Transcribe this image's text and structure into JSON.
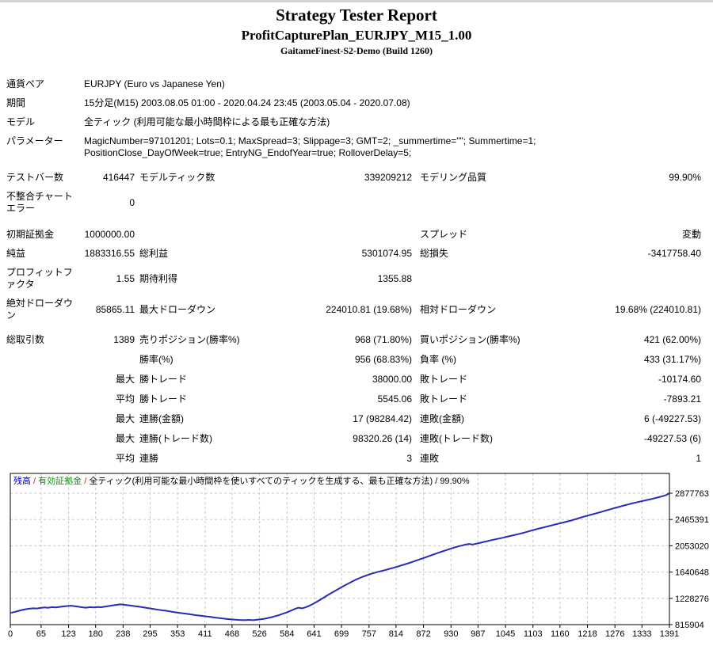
{
  "header": {
    "title": "Strategy Tester Report",
    "symbol_line": "ProfitCapturePlan_EURJPY_M15_1.00",
    "server_line": "GaitameFinest-S2-Demo (Build 1260)"
  },
  "table": {
    "sections": [
      {
        "name": "settings",
        "rows": [
          {
            "type": "full",
            "label": "通貨ペア",
            "value": "EURJPY (Euro vs Japanese Yen)"
          },
          {
            "type": "full",
            "label": "期間",
            "value": "15分足(M15) 2003.08.05 01:00 - 2020.04.24 23:45 (2003.05.04 - 2020.07.08)"
          },
          {
            "type": "full",
            "label": "モデル",
            "value": "全ティック (利用可能な最小時間枠による最も正確な方法)"
          },
          {
            "type": "full",
            "label": "パラメーター",
            "value": "MagicNumber=97101201; Lots=0.1; MaxSpread=3; Slippage=3; GMT=2; _summertime=\"\"; Summertime=1; PositionClose_DayOfWeek=true; EntryNG_EndofYear=true; RolloverDelay=5;"
          }
        ]
      },
      {
        "name": "modeling",
        "rows": [
          {
            "type": "cols",
            "cells": [
              "テストバー数",
              "416447",
              "モデルティック数",
              "339209212",
              "モデリング品質",
              "99.90%"
            ]
          },
          {
            "type": "cols",
            "cells": [
              "不整合チャートエラー",
              "0",
              "",
              "",
              "",
              ""
            ]
          }
        ]
      },
      {
        "name": "results",
        "rows": [
          {
            "type": "cols",
            "cells": [
              "初期証拠金",
              "1000000.00",
              "",
              "",
              "スプレッド",
              "変動"
            ]
          },
          {
            "type": "cols",
            "cells": [
              "純益",
              "1883316.55",
              "総利益",
              "5301074.95",
              "総損失",
              "-3417758.40"
            ]
          },
          {
            "type": "cols",
            "cells": [
              "プロフィットファクタ",
              "1.55",
              "期待利得",
              "1355.88",
              "",
              ""
            ]
          },
          {
            "type": "cols",
            "cells": [
              "絶対ドローダウン",
              "85865.11",
              "最大ドローダウン",
              "224010.81 (19.68%)",
              "相対ドローダウン",
              "19.68% (224010.81)"
            ]
          }
        ]
      },
      {
        "name": "trades",
        "rows": [
          {
            "type": "cols",
            "cells": [
              "総取引数",
              "1389",
              "売りポジション(勝率%)",
              "968 (71.80%)",
              "買いポジション(勝率%)",
              "421 (62.00%)"
            ]
          },
          {
            "type": "cols",
            "cells": [
              "",
              "",
              "勝率(%)",
              "956 (68.83%)",
              "負率 (%)",
              "433 (31.17%)"
            ]
          },
          {
            "type": "cols",
            "cells": [
              "",
              "最大",
              "勝トレード",
              "38000.00",
              "敗トレード",
              "-10174.60"
            ]
          },
          {
            "type": "cols",
            "cells": [
              "",
              "平均",
              "勝トレード",
              "5545.06",
              "敗トレード",
              "-7893.21"
            ]
          },
          {
            "type": "cols",
            "cells": [
              "",
              "最大",
              "連勝(金額)",
              "17 (98284.42)",
              "連敗(金額)",
              "6 (-49227.53)"
            ]
          },
          {
            "type": "cols",
            "cells": [
              "",
              "最大",
              "連勝(トレード数)",
              "98320.26 (14)",
              "連敗(トレード数)",
              "-49227.53 (6)"
            ]
          },
          {
            "type": "cols",
            "cells": [
              "",
              "平均",
              "連勝",
              "3",
              "連敗",
              "1"
            ]
          }
        ]
      }
    ]
  },
  "chart_data": {
    "type": "line",
    "legend": {
      "balance_label": "残高",
      "equity_label": "有効証拠金",
      "model_label": "全ティック(利用可能な最小時間枠を使いすべてのティックを生成する、最も正確な方法)",
      "quality": "99.90%",
      "separator": " / "
    },
    "xlabel": "",
    "ylabel": "",
    "x_axis": {
      "range": [
        0,
        1391
      ],
      "ticks": [
        0,
        65,
        123,
        180,
        238,
        295,
        353,
        411,
        468,
        526,
        584,
        641,
        699,
        757,
        814,
        872,
        930,
        987,
        1045,
        1103,
        1160,
        1218,
        1276,
        1333,
        1391
      ]
    },
    "y_axis": {
      "ticks": [
        815904,
        1228276,
        1640648,
        2053020,
        2465391,
        2877763
      ]
    },
    "grid": "dashed",
    "series": [
      {
        "name": "残高",
        "color": "#2A2AB8",
        "points": [
          [
            0,
            1000000
          ],
          [
            8,
            1012000
          ],
          [
            16,
            1028000
          ],
          [
            24,
            1044000
          ],
          [
            32,
            1057000
          ],
          [
            40,
            1066000
          ],
          [
            48,
            1072000
          ],
          [
            56,
            1069000
          ],
          [
            64,
            1078000
          ],
          [
            72,
            1085000
          ],
          [
            80,
            1081000
          ],
          [
            88,
            1090000
          ],
          [
            96,
            1086000
          ],
          [
            104,
            1094000
          ],
          [
            112,
            1102000
          ],
          [
            120,
            1108000
          ],
          [
            128,
            1113000
          ],
          [
            136,
            1104000
          ],
          [
            144,
            1096000
          ],
          [
            152,
            1088000
          ],
          [
            160,
            1082000
          ],
          [
            168,
            1091000
          ],
          [
            176,
            1086000
          ],
          [
            184,
            1092000
          ],
          [
            192,
            1089000
          ],
          [
            200,
            1098000
          ],
          [
            208,
            1108000
          ],
          [
            216,
            1117000
          ],
          [
            224,
            1126000
          ],
          [
            232,
            1134000
          ],
          [
            240,
            1128000
          ],
          [
            248,
            1120000
          ],
          [
            256,
            1113000
          ],
          [
            264,
            1105000
          ],
          [
            272,
            1097000
          ],
          [
            280,
            1088000
          ],
          [
            288,
            1078000
          ],
          [
            296,
            1069000
          ],
          [
            304,
            1059000
          ],
          [
            312,
            1050000
          ],
          [
            320,
            1041000
          ],
          [
            328,
            1034000
          ],
          [
            336,
            1024000
          ],
          [
            344,
            1014000
          ],
          [
            352,
            1005000
          ],
          [
            360,
            997000
          ],
          [
            368,
            990000
          ],
          [
            376,
            982000
          ],
          [
            384,
            973000
          ],
          [
            392,
            964000
          ],
          [
            400,
            957000
          ],
          [
            408,
            950000
          ],
          [
            416,
            943000
          ],
          [
            424,
            935000
          ],
          [
            432,
            927000
          ],
          [
            440,
            920000
          ],
          [
            448,
            913000
          ],
          [
            456,
            906000
          ],
          [
            464,
            900000
          ],
          [
            472,
            895000
          ],
          [
            480,
            891000
          ],
          [
            488,
            888000
          ],
          [
            496,
            886000
          ],
          [
            504,
            890000
          ],
          [
            512,
            886000
          ],
          [
            520,
            892000
          ],
          [
            528,
            899000
          ],
          [
            536,
            908000
          ],
          [
            544,
            920000
          ],
          [
            552,
            934000
          ],
          [
            560,
            950000
          ],
          [
            568,
            968000
          ],
          [
            576,
            988000
          ],
          [
            584,
            1010000
          ],
          [
            592,
            1034000
          ],
          [
            600,
            1060000
          ],
          [
            608,
            1082000
          ],
          [
            616,
            1072000
          ],
          [
            624,
            1090000
          ],
          [
            632,
            1115000
          ],
          [
            640,
            1145000
          ],
          [
            648,
            1180000
          ],
          [
            656,
            1215000
          ],
          [
            664,
            1252000
          ],
          [
            672,
            1288000
          ],
          [
            680,
            1322000
          ],
          [
            688,
            1356000
          ],
          [
            696,
            1390000
          ],
          [
            704,
            1424000
          ],
          [
            712,
            1456000
          ],
          [
            720,
            1487000
          ],
          [
            728,
            1516000
          ],
          [
            736,
            1543000
          ],
          [
            744,
            1567000
          ],
          [
            752,
            1589000
          ],
          [
            760,
            1609000
          ],
          [
            768,
            1627000
          ],
          [
            776,
            1644000
          ],
          [
            784,
            1658000
          ],
          [
            792,
            1673000
          ],
          [
            800,
            1690000
          ],
          [
            808,
            1707000
          ],
          [
            816,
            1724000
          ],
          [
            824,
            1742000
          ],
          [
            832,
            1760000
          ],
          [
            840,
            1779000
          ],
          [
            848,
            1799000
          ],
          [
            856,
            1819000
          ],
          [
            864,
            1840000
          ],
          [
            872,
            1861000
          ],
          [
            880,
            1882000
          ],
          [
            888,
            1903000
          ],
          [
            896,
            1924000
          ],
          [
            904,
            1945000
          ],
          [
            912,
            1965000
          ],
          [
            920,
            1985000
          ],
          [
            928,
            2005000
          ],
          [
            936,
            2023000
          ],
          [
            944,
            2040000
          ],
          [
            952,
            2056000
          ],
          [
            960,
            2070000
          ],
          [
            968,
            2081000
          ],
          [
            976,
            2073000
          ],
          [
            984,
            2086000
          ],
          [
            992,
            2100000
          ],
          [
            1000,
            2114000
          ],
          [
            1008,
            2128000
          ],
          [
            1016,
            2142000
          ],
          [
            1024,
            2155000
          ],
          [
            1032,
            2167000
          ],
          [
            1040,
            2180000
          ],
          [
            1048,
            2194000
          ],
          [
            1056,
            2208000
          ],
          [
            1064,
            2222000
          ],
          [
            1072,
            2236000
          ],
          [
            1080,
            2251000
          ],
          [
            1088,
            2267000
          ],
          [
            1096,
            2284000
          ],
          [
            1104,
            2300000
          ],
          [
            1112,
            2316000
          ],
          [
            1120,
            2331000
          ],
          [
            1128,
            2346000
          ],
          [
            1136,
            2361000
          ],
          [
            1144,
            2376000
          ],
          [
            1152,
            2391000
          ],
          [
            1160,
            2406000
          ],
          [
            1168,
            2420000
          ],
          [
            1176,
            2435000
          ],
          [
            1184,
            2451000
          ],
          [
            1192,
            2468000
          ],
          [
            1200,
            2486000
          ],
          [
            1208,
            2504000
          ],
          [
            1216,
            2521000
          ],
          [
            1224,
            2538000
          ],
          [
            1232,
            2554000
          ],
          [
            1240,
            2570000
          ],
          [
            1248,
            2587000
          ],
          [
            1256,
            2604000
          ],
          [
            1264,
            2621000
          ],
          [
            1272,
            2638000
          ],
          [
            1280,
            2654000
          ],
          [
            1288,
            2670000
          ],
          [
            1296,
            2686000
          ],
          [
            1304,
            2702000
          ],
          [
            1312,
            2717000
          ],
          [
            1320,
            2731000
          ],
          [
            1328,
            2745000
          ],
          [
            1336,
            2759000
          ],
          [
            1344,
            2772000
          ],
          [
            1352,
            2785000
          ],
          [
            1360,
            2799000
          ],
          [
            1368,
            2814000
          ],
          [
            1376,
            2830000
          ],
          [
            1384,
            2848000
          ],
          [
            1391,
            2877763
          ]
        ]
      }
    ]
  }
}
